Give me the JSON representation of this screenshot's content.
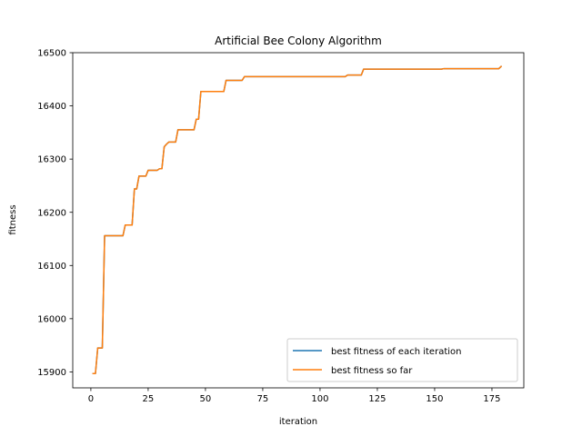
{
  "chart_data": {
    "type": "line",
    "title": "Artificial Bee Colony Algorithm",
    "xlabel": "iteration",
    "ylabel": "fitness",
    "xlim": [
      -7.9,
      188.9
    ],
    "ylim": [
      15870,
      16500
    ],
    "xticks": [
      0,
      25,
      50,
      75,
      100,
      125,
      150,
      175
    ],
    "yticks": [
      15900,
      16000,
      16100,
      16200,
      16300,
      16400,
      16500
    ],
    "grid": false,
    "legend_position": "lower right",
    "series": [
      {
        "name": "best fitness of each iteration",
        "color": "#1f77b4",
        "points": [
          [
            1,
            15897
          ],
          [
            2,
            15897
          ],
          [
            3,
            15945
          ],
          [
            5,
            15945
          ],
          [
            6,
            16156
          ],
          [
            14,
            16156
          ],
          [
            15,
            16176
          ],
          [
            18,
            16176
          ],
          [
            19,
            16244
          ],
          [
            20,
            16244
          ],
          [
            21,
            16268
          ],
          [
            24,
            16268
          ],
          [
            25,
            16279
          ],
          [
            29,
            16279
          ],
          [
            30,
            16282
          ],
          [
            31,
            16282
          ],
          [
            32,
            16323
          ],
          [
            33,
            16328
          ],
          [
            34,
            16332
          ],
          [
            37,
            16332
          ],
          [
            38,
            16355
          ],
          [
            45,
            16355
          ],
          [
            46,
            16375
          ],
          [
            47,
            16375
          ],
          [
            48,
            16427
          ],
          [
            58,
            16427
          ],
          [
            59,
            16448
          ],
          [
            66,
            16448
          ],
          [
            67,
            16455
          ],
          [
            111,
            16455
          ],
          [
            112,
            16458
          ],
          [
            118,
            16458
          ],
          [
            119,
            16469
          ],
          [
            153,
            16469
          ],
          [
            154,
            16470
          ],
          [
            178,
            16470
          ],
          [
            179,
            16474
          ]
        ]
      },
      {
        "name": "best fitness so far",
        "color": "#ff7f0e",
        "points": [
          [
            1,
            15897
          ],
          [
            2,
            15897
          ],
          [
            3,
            15945
          ],
          [
            5,
            15945
          ],
          [
            6,
            16156
          ],
          [
            14,
            16156
          ],
          [
            15,
            16176
          ],
          [
            18,
            16176
          ],
          [
            19,
            16244
          ],
          [
            20,
            16244
          ],
          [
            21,
            16268
          ],
          [
            24,
            16268
          ],
          [
            25,
            16279
          ],
          [
            29,
            16279
          ],
          [
            30,
            16282
          ],
          [
            31,
            16282
          ],
          [
            32,
            16323
          ],
          [
            33,
            16328
          ],
          [
            34,
            16332
          ],
          [
            37,
            16332
          ],
          [
            38,
            16355
          ],
          [
            45,
            16355
          ],
          [
            46,
            16375
          ],
          [
            47,
            16375
          ],
          [
            48,
            16427
          ],
          [
            58,
            16427
          ],
          [
            59,
            16448
          ],
          [
            66,
            16448
          ],
          [
            67,
            16455
          ],
          [
            111,
            16455
          ],
          [
            112,
            16458
          ],
          [
            118,
            16458
          ],
          [
            119,
            16469
          ],
          [
            153,
            16469
          ],
          [
            154,
            16470
          ],
          [
            178,
            16470
          ],
          [
            179,
            16474
          ]
        ]
      }
    ]
  }
}
